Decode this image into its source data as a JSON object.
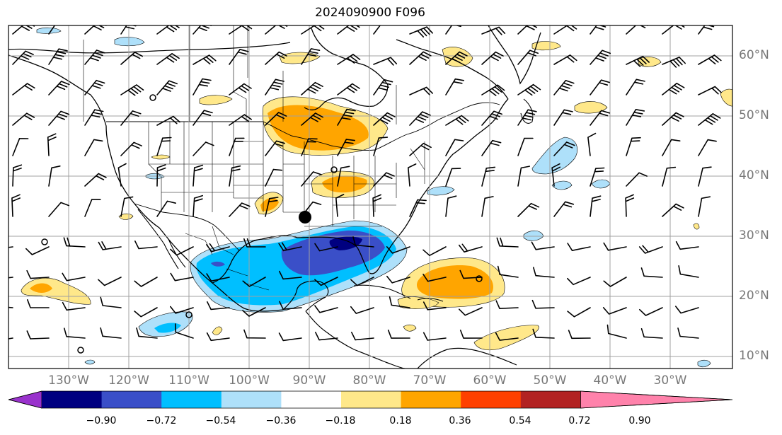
{
  "title": "2024090900 F096",
  "lat_labels": [
    "60°N",
    "50°N",
    "40°N",
    "30°N",
    "20°N",
    "10°N"
  ],
  "lon_labels": [
    "130°W",
    "120°W",
    "110°W",
    "100°W",
    "90°W",
    "80°W",
    "70°W",
    "60°W",
    "50°W",
    "40°W",
    "30°W"
  ],
  "colorbar": {
    "ticks": [
      "−0.90",
      "−0.72",
      "−0.54",
      "−0.36",
      "−0.18",
      "0.18",
      "0.36",
      "0.54",
      "0.72",
      "0.90"
    ],
    "colors": [
      "#9932cc",
      "#000080",
      "#3a4fc8",
      "#00bfff",
      "#aee0fa",
      "#ffffff",
      "#ffe88a",
      "#ffa500",
      "#ff4000",
      "#b22222",
      "#ff82ab"
    ]
  },
  "colors": {
    "pos_light": "#ffe88a",
    "pos_mid": "#ffa500",
    "neg_light": "#aee0fa",
    "neg_mid": "#00bfff",
    "neg_strong": "#3a4fc8",
    "neg_dark": "#000080",
    "grid": "#a0a0a0"
  }
}
